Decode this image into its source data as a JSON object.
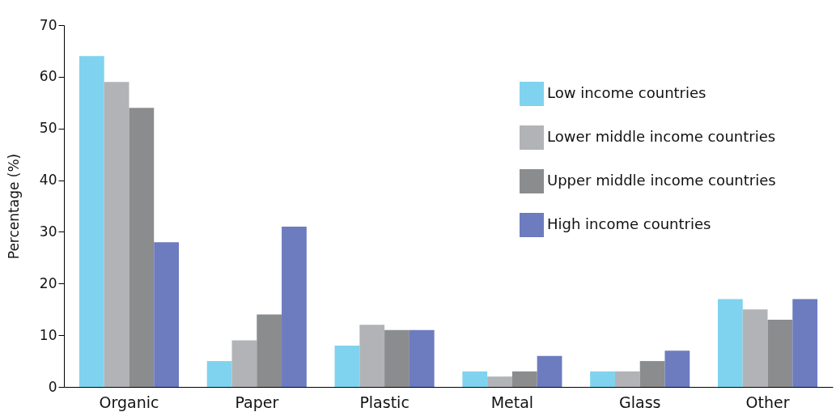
{
  "chart_data": {
    "type": "bar",
    "ylabel": "Percentage (%)",
    "categories": [
      "Organic",
      "Paper",
      "Plastic",
      "Metal",
      "Glass",
      "Other"
    ],
    "series": [
      {
        "name": "Low income countries",
        "color": "#7fd3ee",
        "values": [
          64,
          5,
          8,
          3,
          3,
          17
        ]
      },
      {
        "name": "Lower middle income countries",
        "color": "#b1b3b6",
        "values": [
          59,
          9,
          12,
          2,
          3,
          15
        ]
      },
      {
        "name": "Upper middle income countries",
        "color": "#8a8c8e",
        "values": [
          54,
          14,
          11,
          3,
          5,
          13
        ]
      },
      {
        "name": "High income countries",
        "color": "#6d7bbf",
        "values": [
          28,
          31,
          11,
          6,
          7,
          17
        ]
      }
    ],
    "ylim": [
      0,
      70
    ],
    "yticks": [
      0,
      10,
      20,
      30,
      40,
      50,
      60,
      70
    ],
    "grid": false,
    "legend": "top right"
  }
}
